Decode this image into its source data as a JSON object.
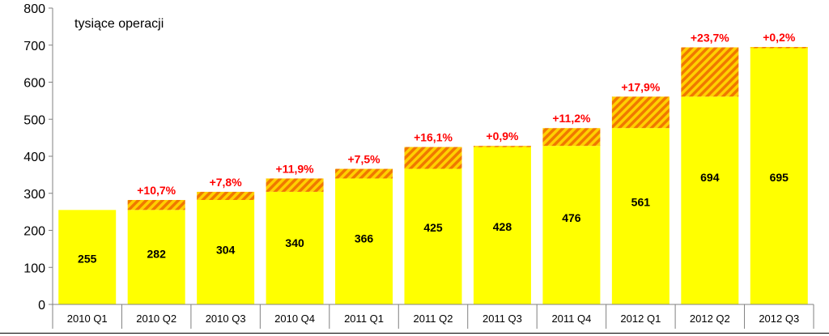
{
  "chart_data": {
    "type": "bar",
    "annotation": "tysiące operacji",
    "categories": [
      "2010 Q1",
      "2010 Q2",
      "2010 Q3",
      "2010 Q4",
      "2011 Q1",
      "2011 Q2",
      "2011 Q3",
      "2011 Q4",
      "2012 Q1",
      "2012 Q2",
      "2012 Q3"
    ],
    "values": [
      255,
      282,
      304,
      340,
      366,
      425,
      428,
      476,
      561,
      694,
      695
    ],
    "value_labels": [
      "255",
      "282",
      "304",
      "340",
      "366",
      "425",
      "428",
      "476",
      "561",
      "694",
      "695"
    ],
    "growth_labels": [
      "",
      "+10,7%",
      "+7,8%",
      "+11,9%",
      "+7,5%",
      "+16,1%",
      "+0,9%",
      "+11,2%",
      "+17,9%",
      "+23,7%",
      "+0,2%"
    ],
    "ylim": [
      0,
      800
    ],
    "yticks": [
      0,
      100,
      200,
      300,
      400,
      500,
      600,
      700,
      800
    ],
    "grid": false,
    "legend": "none",
    "colors": {
      "bar_fill": "#ffff00",
      "increase_stripe_a": "#f07800",
      "increase_stripe_b": "#ffd000",
      "growth_label": "#ff0000",
      "value_label": "#000000",
      "axis": "#808080"
    }
  }
}
